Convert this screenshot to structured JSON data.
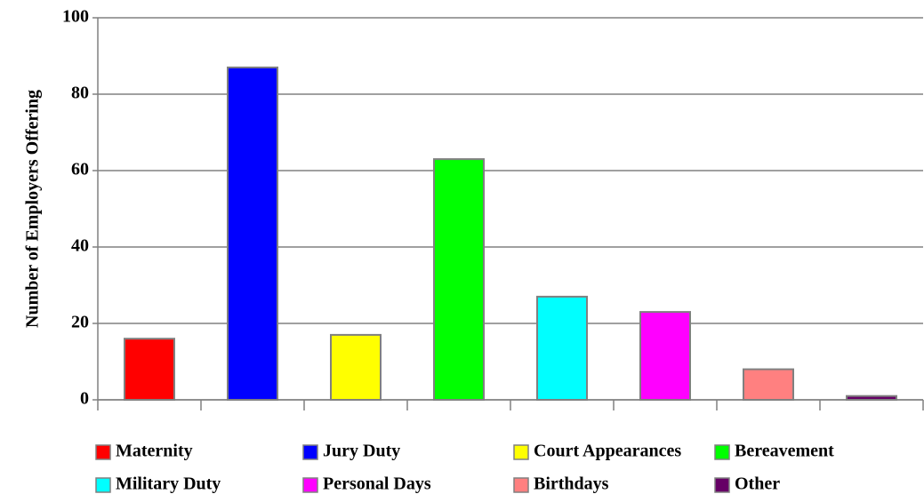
{
  "chart_data": {
    "type": "bar",
    "y_label": "Number of Employers Offering",
    "categories": [
      "Maternity",
      "Jury Duty",
      "Court Appearances",
      "Bereavement",
      "Military Duty",
      "Personal Days",
      "Birthdays",
      "Other"
    ],
    "values": [
      16,
      87,
      17,
      63,
      27,
      23,
      8,
      1
    ],
    "colors": [
      "#ff0000",
      "#0000ff",
      "#ffff00",
      "#00ff00",
      "#00ffff",
      "#ff00ff",
      "#ff8080",
      "#660066"
    ],
    "ylim": [
      0,
      100
    ],
    "yticks": [
      0,
      20,
      40,
      60,
      80,
      100
    ],
    "grid": true,
    "legend": "bottom"
  }
}
